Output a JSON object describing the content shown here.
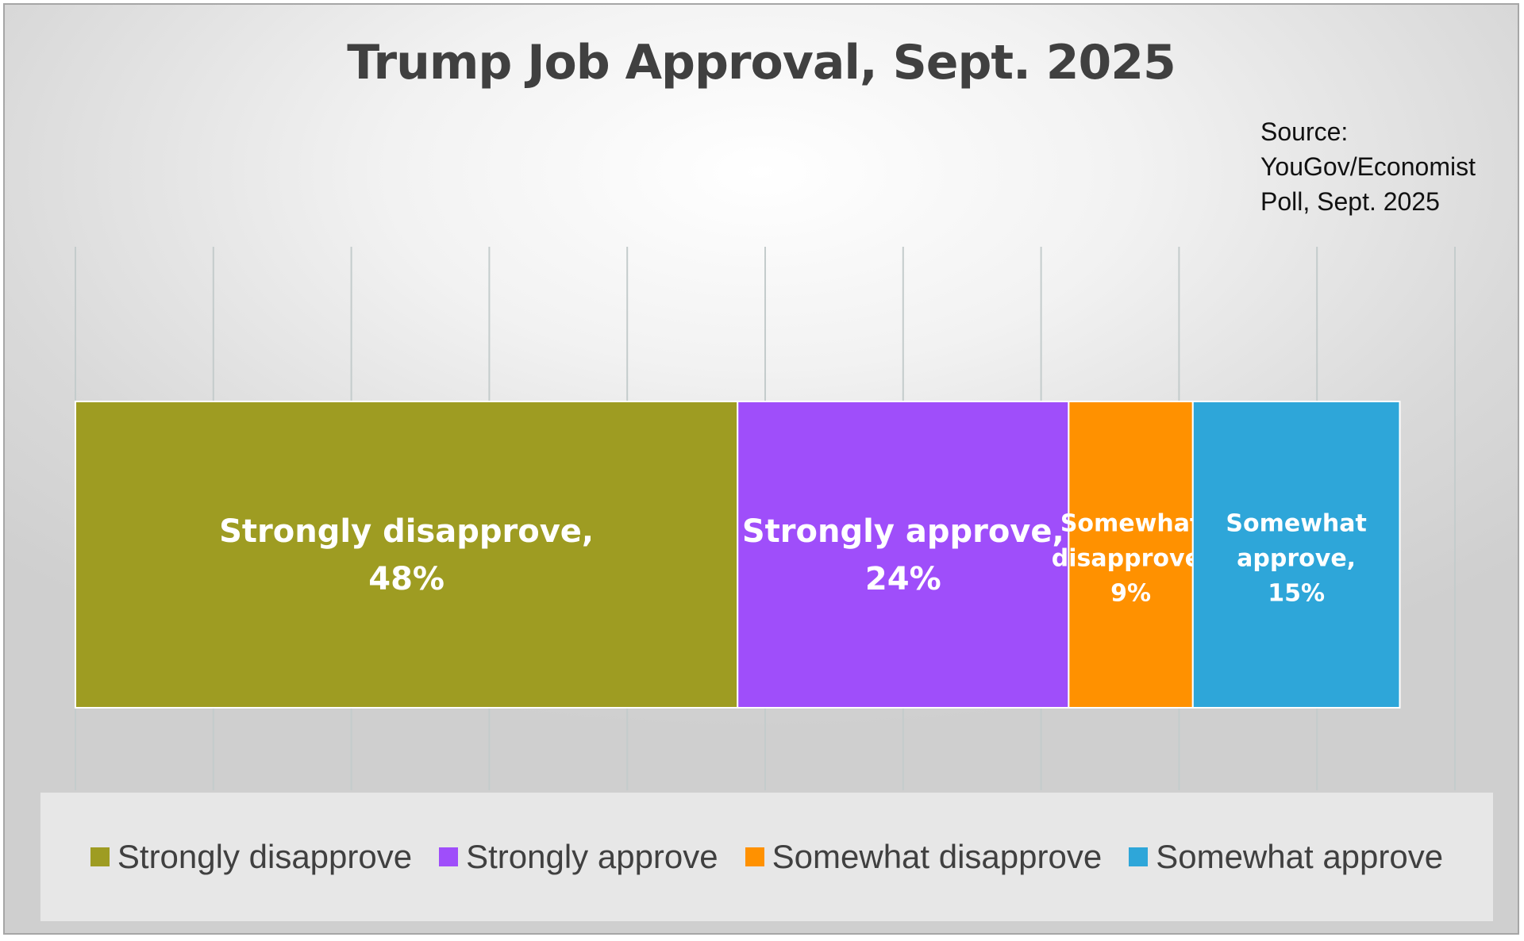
{
  "source_note": [
    "Source:",
    "YouGov/Economist",
    "Poll, Sept. 2025"
  ],
  "chart_data": {
    "type": "bar",
    "orientation": "horizontal-stacked-100",
    "title": "Trump Job Approval, Sept. 2025",
    "xlim": [
      0,
      100
    ],
    "grid": true,
    "legend_position": "bottom",
    "series": [
      {
        "name": "Strongly disapprove",
        "value": 48,
        "color": "#9e9c22",
        "label_lines": [
          "Strongly disapprove,",
          "48%"
        ]
      },
      {
        "name": "Strongly approve",
        "value": 24,
        "color": "#9f4efa",
        "label_lines": [
          "Strongly approve,",
          "24%"
        ]
      },
      {
        "name": "Somewhat disapprove",
        "value": 9,
        "color": "#ff9100",
        "label_lines": [
          "Somewhat",
          "disapprove,",
          "9%"
        ]
      },
      {
        "name": "Somewhat approve",
        "value": 15,
        "color": "#2ea6d9",
        "label_lines": [
          "Somewhat",
          "approve,",
          "15%"
        ]
      }
    ]
  }
}
